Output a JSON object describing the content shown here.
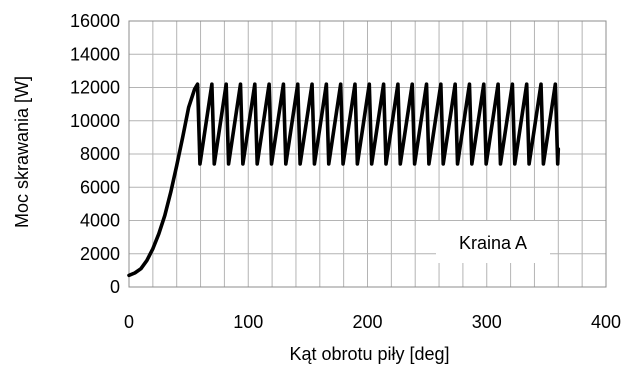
{
  "chart_data": {
    "type": "line",
    "title": "",
    "xlabel": "Kąt obrotu piły [deg]",
    "ylabel": "Moc skrawania [W]",
    "xlim": [
      0,
      400
    ],
    "ylim": [
      0,
      16000
    ],
    "xticks": [
      0,
      100,
      200,
      300,
      400
    ],
    "yticks": [
      0,
      2000,
      4000,
      6000,
      8000,
      10000,
      12000,
      14000,
      16000
    ],
    "xtick_labels": [
      "0",
      "100",
      "200",
      "300",
      "400"
    ],
    "ytick_labels": [
      "0",
      "2000",
      "4000",
      "6000",
      "8000",
      "10000",
      "12000",
      "14000",
      "16000"
    ],
    "grid": true,
    "line_color": "#000000",
    "annotation": {
      "text": "Kraina  A"
    },
    "series": [
      {
        "x": [
          0,
          5,
          10,
          15,
          20,
          25,
          30,
          35,
          40,
          45,
          50,
          55,
          57.5,
          59.5,
          69.5,
          71.5,
          81.5,
          83.5,
          93.5,
          95.5,
          105.5,
          107.5,
          117.5,
          119.5,
          129.5,
          131.5,
          141.5,
          143.5,
          153.5,
          155.5,
          165.5,
          167.5,
          177.5,
          179.5,
          189.5,
          191.5,
          201.5,
          203.5,
          213.5,
          215.5,
          225.5,
          227.5,
          237.5,
          239.5,
          249.5,
          251.5,
          261.5,
          263.5,
          273.5,
          275.5,
          285.5,
          287.5,
          297.5,
          299.5,
          309.5,
          311.5,
          321.5,
          323.5,
          333.5,
          335.5,
          345.5,
          347.5,
          357.5,
          359.5,
          360
        ],
        "y": [
          700,
          850,
          1100,
          1600,
          2300,
          3200,
          4300,
          5700,
          7300,
          9000,
          10800,
          11900,
          12200,
          7400,
          12200,
          7400,
          12200,
          7400,
          12200,
          7400,
          12200,
          7400,
          12200,
          7400,
          12200,
          7400,
          12200,
          7400,
          12200,
          7400,
          12200,
          7400,
          12200,
          7400,
          12200,
          7400,
          12200,
          7400,
          12200,
          7400,
          12200,
          7400,
          12200,
          7400,
          12200,
          7400,
          12200,
          7400,
          12200,
          7400,
          12200,
          7400,
          12200,
          7400,
          12200,
          7400,
          12200,
          7400,
          12200,
          7400,
          12200,
          7400,
          12200,
          7400,
          8300
        ]
      }
    ]
  }
}
